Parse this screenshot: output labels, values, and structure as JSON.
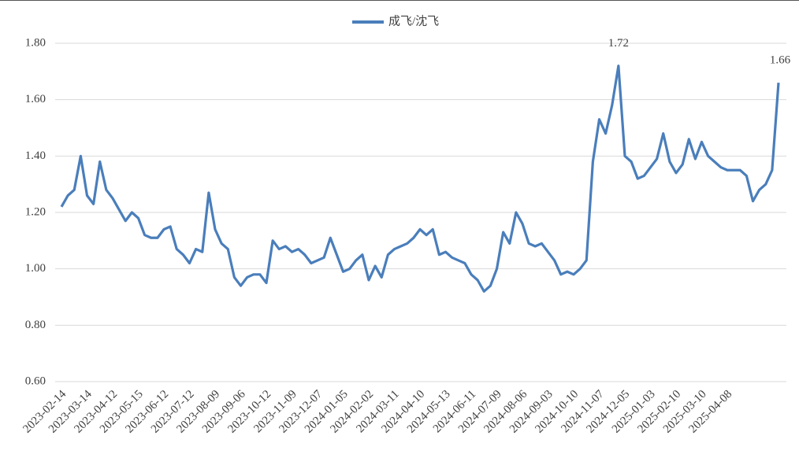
{
  "chart_data": {
    "type": "line",
    "series": [
      {
        "name": "成飞/沈飞",
        "color": "#4a7ebb",
        "values": [
          1.22,
          1.26,
          1.28,
          1.4,
          1.26,
          1.23,
          1.38,
          1.28,
          1.25,
          1.21,
          1.17,
          1.2,
          1.18,
          1.12,
          1.11,
          1.11,
          1.14,
          1.15,
          1.07,
          1.05,
          1.02,
          1.07,
          1.06,
          1.27,
          1.14,
          1.09,
          1.07,
          0.97,
          0.94,
          0.97,
          0.98,
          0.98,
          0.95,
          1.1,
          1.07,
          1.08,
          1.06,
          1.07,
          1.05,
          1.02,
          1.03,
          1.04,
          1.11,
          1.05,
          0.99,
          1.0,
          1.03,
          1.05,
          0.96,
          1.01,
          0.97,
          1.05,
          1.07,
          1.08,
          1.09,
          1.11,
          1.14,
          1.12,
          1.14,
          1.05,
          1.06,
          1.04,
          1.03,
          1.02,
          0.98,
          0.96,
          0.92,
          0.94,
          1.0,
          1.13,
          1.09,
          1.2,
          1.16,
          1.09,
          1.08,
          1.09,
          1.06,
          1.03,
          0.98,
          0.99,
          0.98,
          1.0,
          1.03,
          1.38,
          1.53,
          1.48,
          1.58,
          1.72,
          1.4,
          1.38,
          1.32,
          1.33,
          1.36,
          1.39,
          1.48,
          1.38,
          1.34,
          1.37,
          1.46,
          1.39,
          1.45,
          1.4,
          1.38,
          1.36,
          1.35,
          1.35,
          1.35,
          1.33,
          1.24,
          1.28,
          1.3,
          1.35,
          1.66
        ]
      }
    ],
    "categories": [
      "2023-02-14",
      null,
      null,
      null,
      "2023-03-14",
      null,
      null,
      null,
      "2023-04-12",
      null,
      null,
      null,
      "2023-05-15",
      null,
      null,
      null,
      "2023-06-12",
      null,
      null,
      null,
      "2023-07-12",
      null,
      null,
      null,
      "2023-08-09",
      null,
      null,
      null,
      "2023-09-06",
      null,
      null,
      null,
      "2023-10-12",
      null,
      null,
      null,
      "2023-11-09",
      null,
      null,
      null,
      "2023-12-07",
      null,
      null,
      null,
      "2024-01-05",
      null,
      null,
      null,
      "2024-02-02",
      null,
      null,
      null,
      "2024-03-11",
      null,
      null,
      null,
      "2024-04-10",
      null,
      null,
      null,
      "2024-05-13",
      null,
      null,
      null,
      "2024-06-11",
      null,
      null,
      null,
      "2024-07-09",
      null,
      null,
      null,
      "2024-08-06",
      null,
      null,
      null,
      "2024-09-03",
      null,
      null,
      null,
      "2024-10-10",
      null,
      null,
      null,
      "2024-11-07",
      null,
      null,
      null,
      "2024-12-05",
      null,
      null,
      null,
      "2025-01-03",
      null,
      null,
      null,
      "2025-02-10",
      null,
      null,
      null,
      "2025-03-10",
      null,
      null,
      null,
      "2025-04-08",
      null,
      null,
      null,
      null,
      null,
      null,
      null,
      null
    ],
    "ylim": [
      0.6,
      1.8
    ],
    "yticks": [
      {
        "value": 0.6,
        "label": "0.60"
      },
      {
        "value": 0.8,
        "label": "0.80"
      },
      {
        "value": 1.0,
        "label": "1.00"
      },
      {
        "value": 1.2,
        "label": "1.20"
      },
      {
        "value": 1.4,
        "label": "1.40"
      },
      {
        "value": 1.6,
        "label": "1.60"
      },
      {
        "value": 1.8,
        "label": "1.80"
      }
    ],
    "grid": true,
    "legend": "top",
    "data_labels": [
      "max",
      "last"
    ]
  }
}
